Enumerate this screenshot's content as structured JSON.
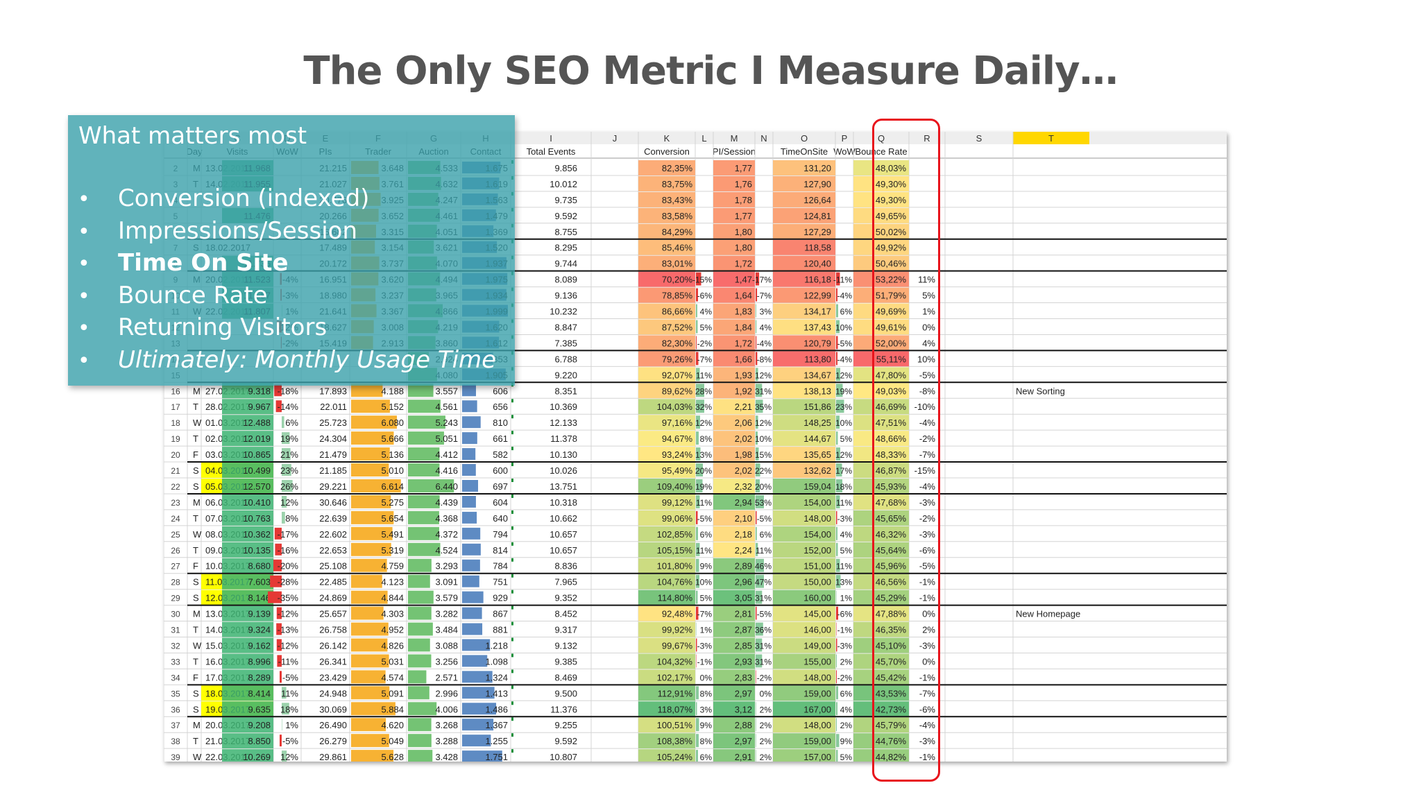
{
  "slide": {
    "title": "The Only SEO Metric I Measure Daily…"
  },
  "overlay": {
    "heading": "What matters most",
    "bullets": [
      {
        "text": "Conversion (indexed)",
        "style": "normal"
      },
      {
        "text": "Impressions/Session",
        "style": "normal"
      },
      {
        "text": "Time On Site",
        "style": "bold"
      },
      {
        "text": "Bounce Rate",
        "style": "normal"
      },
      {
        "text": "Returning Visitors",
        "style": "normal"
      },
      {
        "text": "Ultimately: Monthly Usage Time",
        "style": "italic"
      }
    ],
    "bullet_glyph": "•"
  },
  "sheet": {
    "column_letters": [
      "",
      "",
      "C",
      "D",
      "E",
      "F",
      "G",
      "H",
      "I",
      "J",
      "K",
      "L",
      "M",
      "N",
      "O",
      "P",
      "Q",
      "R",
      "S",
      "T"
    ],
    "headers": [
      "",
      "Day",
      "Visits",
      "WoW",
      "PIs",
      "Trader",
      "Auction",
      "Contact",
      "Total Events",
      "",
      "Conversion",
      "",
      "PI/Session",
      "",
      "TimeOnSite",
      "WoW",
      "Bounce Rate",
      "",
      "",
      ""
    ],
    "rows": [
      {
        "n": "16",
        "d": "M",
        "date": "27.02.2017",
        "visits": "9.318",
        "wow": "-18%",
        "pis": "17.893",
        "trader": "4.188",
        "auction": "3.557",
        "contact": "606",
        "total": "8.351",
        "conv": "89,62%",
        "cw": "28%",
        "pis_s": "1,92",
        "pw": "31%",
        "tos": "138,13",
        "tw": "19%",
        "br": "49,03%",
        "bw": "-8%",
        "note": ""
      },
      {
        "n": "17",
        "d": "T",
        "date": "28.02.2017",
        "visits": "9.967",
        "wow": "-14%",
        "pis": "22.011",
        "trader": "5.152",
        "auction": "4.561",
        "contact": "656",
        "total": "10.369",
        "conv": "104,03%",
        "cw": "32%",
        "pis_s": "2,21",
        "pw": "35%",
        "tos": "151,86",
        "tw": "23%",
        "br": "46,69%",
        "bw": "-10%",
        "note": ""
      },
      {
        "n": "18",
        "d": "W",
        "date": "01.03.2017",
        "visits": "12.488",
        "wow": "6%",
        "pis": "25.723",
        "trader": "6.080",
        "auction": "5.243",
        "contact": "810",
        "total": "12.133",
        "conv": "97,16%",
        "cw": "12%",
        "pis_s": "2,06",
        "pw": "12%",
        "tos": "148,25",
        "tw": "10%",
        "br": "47,51%",
        "bw": "-4%",
        "note": ""
      },
      {
        "n": "19",
        "d": "T",
        "date": "02.03.2017",
        "visits": "12.019",
        "wow": "19%",
        "pis": "24.304",
        "trader": "5.666",
        "auction": "5.051",
        "contact": "661",
        "total": "11.378",
        "conv": "94,67%",
        "cw": "8%",
        "pis_s": "2,02",
        "pw": "10%",
        "tos": "144,67",
        "tw": "5%",
        "br": "48,66%",
        "bw": "-2%",
        "note": ""
      },
      {
        "n": "20",
        "d": "F",
        "date": "03.03.2017",
        "visits": "10.865",
        "wow": "21%",
        "pis": "21.479",
        "trader": "5.136",
        "auction": "4.412",
        "contact": "582",
        "total": "10.130",
        "conv": "93,24%",
        "cw": "13%",
        "pis_s": "1,98",
        "pw": "15%",
        "tos": "135,65",
        "tw": "12%",
        "br": "48,33%",
        "bw": "-7%",
        "note": ""
      },
      {
        "n": "21",
        "d": "S",
        "date": "04.03.2017",
        "visits": "10.499",
        "wow": "23%",
        "pis": "21.185",
        "trader": "5.010",
        "auction": "4.416",
        "contact": "600",
        "total": "10.026",
        "conv": "95,49%",
        "cw": "20%",
        "pis_s": "2,02",
        "pw": "22%",
        "tos": "132,62",
        "tw": "17%",
        "br": "46,87%",
        "bw": "-15%",
        "note": ""
      },
      {
        "n": "22",
        "d": "S",
        "date": "05.03.2017",
        "visits": "12.570",
        "wow": "26%",
        "pis": "29.221",
        "trader": "6.614",
        "auction": "6.440",
        "contact": "697",
        "total": "13.751",
        "conv": "109,40%",
        "cw": "19%",
        "pis_s": "2,32",
        "pw": "20%",
        "tos": "159,04",
        "tw": "18%",
        "br": "45,93%",
        "bw": "-4%",
        "note": ""
      },
      {
        "n": "23",
        "d": "M",
        "date": "06.03.2017",
        "visits": "10.410",
        "wow": "12%",
        "pis": "30.646",
        "trader": "5.275",
        "auction": "4.439",
        "contact": "604",
        "total": "10.318",
        "conv": "99,12%",
        "cw": "11%",
        "pis_s": "2,94",
        "pw": "53%",
        "tos": "154,00",
        "tw": "11%",
        "br": "47,68%",
        "bw": "-3%",
        "note": ""
      },
      {
        "n": "24",
        "d": "T",
        "date": "07.03.2017",
        "visits": "10.763",
        "wow": "8%",
        "pis": "22.639",
        "trader": "5.654",
        "auction": "4.368",
        "contact": "640",
        "total": "10.662",
        "conv": "99,06%",
        "cw": "-5%",
        "pis_s": "2,10",
        "pw": "-5%",
        "tos": "148,00",
        "tw": "-3%",
        "br": "45,65%",
        "bw": "-2%",
        "note": ""
      },
      {
        "n": "25",
        "d": "W",
        "date": "08.03.2017",
        "visits": "10.362",
        "wow": "-17%",
        "pis": "22.602",
        "trader": "5.491",
        "auction": "4.372",
        "contact": "794",
        "total": "10.657",
        "conv": "102,85%",
        "cw": "6%",
        "pis_s": "2,18",
        "pw": "6%",
        "tos": "154,00",
        "tw": "4%",
        "br": "46,32%",
        "bw": "-3%",
        "note": ""
      },
      {
        "n": "26",
        "d": "T",
        "date": "09.03.2017",
        "visits": "10.135",
        "wow": "-16%",
        "pis": "22.653",
        "trader": "5.319",
        "auction": "4.524",
        "contact": "814",
        "total": "10.657",
        "conv": "105,15%",
        "cw": "11%",
        "pis_s": "2,24",
        "pw": "11%",
        "tos": "152,00",
        "tw": "5%",
        "br": "45,64%",
        "bw": "-6%",
        "note": ""
      },
      {
        "n": "27",
        "d": "F",
        "date": "10.03.2017",
        "visits": "8.680",
        "wow": "-20%",
        "pis": "25.108",
        "trader": "4.759",
        "auction": "3.293",
        "contact": "784",
        "total": "8.836",
        "conv": "101,80%",
        "cw": "9%",
        "pis_s": "2,89",
        "pw": "46%",
        "tos": "151,00",
        "tw": "11%",
        "br": "45,96%",
        "bw": "-5%",
        "note": ""
      },
      {
        "n": "28",
        "d": "S",
        "date": "11.03.2017",
        "visits": "7.603",
        "wow": "-28%",
        "pis": "22.485",
        "trader": "4.123",
        "auction": "3.091",
        "contact": "751",
        "total": "7.965",
        "conv": "104,76%",
        "cw": "10%",
        "pis_s": "2,96",
        "pw": "47%",
        "tos": "150,00",
        "tw": "13%",
        "br": "46,56%",
        "bw": "-1%",
        "note": ""
      },
      {
        "n": "29",
        "d": "S",
        "date": "12.03.2017",
        "visits": "8.146",
        "wow": "-35%",
        "pis": "24.869",
        "trader": "4.844",
        "auction": "3.579",
        "contact": "929",
        "total": "9.352",
        "conv": "114,80%",
        "cw": "5%",
        "pis_s": "3,05",
        "pw": "31%",
        "tos": "160,00",
        "tw": "1%",
        "br": "45,29%",
        "bw": "-1%",
        "note": ""
      },
      {
        "n": "30",
        "d": "M",
        "date": "13.03.2017",
        "visits": "9.139",
        "wow": "-12%",
        "pis": "25.657",
        "trader": "4.303",
        "auction": "3.282",
        "contact": "867",
        "total": "8.452",
        "conv": "92,48%",
        "cw": "-7%",
        "pis_s": "2,81",
        "pw": "-5%",
        "tos": "145,00",
        "tw": "-6%",
        "br": "47,88%",
        "bw": "0%",
        "note": "New Homepage"
      },
      {
        "n": "31",
        "d": "T",
        "date": "14.03.2017",
        "visits": "9.324",
        "wow": "-13%",
        "pis": "26.758",
        "trader": "4.952",
        "auction": "3.484",
        "contact": "881",
        "total": "9.317",
        "conv": "99,92%",
        "cw": "1%",
        "pis_s": "2,87",
        "pw": "36%",
        "tos": "146,00",
        "tw": "-1%",
        "br": "46,35%",
        "bw": "2%",
        "note": ""
      },
      {
        "n": "32",
        "d": "W",
        "date": "15.03.2017",
        "visits": "9.162",
        "wow": "-12%",
        "pis": "26.142",
        "trader": "4.826",
        "auction": "3.088",
        "contact": "1.218",
        "total": "9.132",
        "conv": "99,67%",
        "cw": "-3%",
        "pis_s": "2,85",
        "pw": "31%",
        "tos": "149,00",
        "tw": "-3%",
        "br": "45,10%",
        "bw": "-3%",
        "note": ""
      },
      {
        "n": "33",
        "d": "T",
        "date": "16.03.2017",
        "visits": "8.996",
        "wow": "-11%",
        "pis": "26.341",
        "trader": "5.031",
        "auction": "3.256",
        "contact": "1.098",
        "total": "9.385",
        "conv": "104,32%",
        "cw": "-1%",
        "pis_s": "2,93",
        "pw": "31%",
        "tos": "155,00",
        "tw": "2%",
        "br": "45,70%",
        "bw": "0%",
        "note": ""
      },
      {
        "n": "34",
        "d": "F",
        "date": "17.03.2017",
        "visits": "8.289",
        "wow": "-5%",
        "pis": "23.429",
        "trader": "4.574",
        "auction": "2.571",
        "contact": "1.324",
        "total": "8.469",
        "conv": "102,17%",
        "cw": "0%",
        "pis_s": "2,83",
        "pw": "-2%",
        "tos": "148,00",
        "tw": "-2%",
        "br": "45,42%",
        "bw": "-1%",
        "note": ""
      },
      {
        "n": "35",
        "d": "S",
        "date": "18.03.2017",
        "visits": "8.414",
        "wow": "11%",
        "pis": "24.948",
        "trader": "5.091",
        "auction": "2.996",
        "contact": "1.413",
        "total": "9.500",
        "conv": "112,91%",
        "cw": "8%",
        "pis_s": "2,97",
        "pw": "0%",
        "tos": "159,00",
        "tw": "6%",
        "br": "43,53%",
        "bw": "-7%",
        "note": ""
      },
      {
        "n": "36",
        "d": "S",
        "date": "19.03.2017",
        "visits": "9.635",
        "wow": "18%",
        "pis": "30.069",
        "trader": "5.884",
        "auction": "4.006",
        "contact": "1.486",
        "total": "11.376",
        "conv": "118,07%",
        "cw": "3%",
        "pis_s": "3,12",
        "pw": "2%",
        "tos": "167,00",
        "tw": "4%",
        "br": "42,73%",
        "bw": "-6%",
        "note": ""
      },
      {
        "n": "37",
        "d": "M",
        "date": "20.03.2017",
        "visits": "9.208",
        "wow": "1%",
        "pis": "26.490",
        "trader": "4.620",
        "auction": "3.268",
        "contact": "1.367",
        "total": "9.255",
        "conv": "100,51%",
        "cw": "9%",
        "pis_s": "2,88",
        "pw": "2%",
        "tos": "148,00",
        "tw": "2%",
        "br": "45,79%",
        "bw": "-4%",
        "note": ""
      },
      {
        "n": "38",
        "d": "T",
        "date": "21.03.2017",
        "visits": "8.850",
        "wow": "-5%",
        "pis": "26.279",
        "trader": "5.049",
        "auction": "3.288",
        "contact": "1.255",
        "total": "9.592",
        "conv": "108,38%",
        "cw": "8%",
        "pis_s": "2,97",
        "pw": "2%",
        "tos": "159,00",
        "tw": "9%",
        "br": "44,76%",
        "bw": "-3%",
        "note": ""
      },
      {
        "n": "39",
        "d": "W",
        "date": "22.03.2017",
        "visits": "10.269",
        "wow": "12%",
        "pis": "29.861",
        "trader": "5.628",
        "auction": "3.428",
        "contact": "1.751",
        "total": "10.807",
        "conv": "105,24%",
        "cw": "6%",
        "pis_s": "2,91",
        "pw": "2%",
        "tos": "157,00",
        "tw": "5%",
        "br": "44,82%",
        "bw": "-1%",
        "note": ""
      }
    ],
    "upper_rows": [
      {
        "contact": "1.675",
        "total": "9.856",
        "conv": "82,35%",
        "cw": "",
        "pis_s": "1,77",
        "pw": "",
        "tos": "131,20",
        "tw": "",
        "br": "48,03%",
        "bw": "",
        "note": ""
      },
      {
        "contact": "1.619",
        "total": "10.012",
        "conv": "83,75%",
        "cw": "",
        "pis_s": "1,76",
        "pw": "",
        "tos": "127,90",
        "tw": "",
        "br": "49,30%",
        "bw": "",
        "note": ""
      },
      {
        "contact": "1.563",
        "total": "9.735",
        "conv": "83,43%",
        "cw": "",
        "pis_s": "1,78",
        "pw": "",
        "tos": "126,64",
        "tw": "",
        "br": "49,30%",
        "bw": "",
        "note": ""
      },
      {
        "contact": "1.479",
        "total": "9.592",
        "conv": "83,58%",
        "cw": "",
        "pis_s": "1,77",
        "pw": "",
        "tos": "124,81",
        "tw": "",
        "br": "49,65%",
        "bw": "",
        "note": ""
      },
      {
        "contact": "1.369",
        "total": "8.755",
        "conv": "84,29%",
        "cw": "",
        "pis_s": "1,80",
        "pw": "",
        "tos": "127,29",
        "tw": "",
        "br": "50,02%",
        "bw": "",
        "note": ""
      },
      {
        "contact": "1.520",
        "total": "8.295",
        "conv": "85,46%",
        "cw": "",
        "pis_s": "1,80",
        "pw": "",
        "tos": "118,58",
        "tw": "",
        "br": "49,92%",
        "bw": "",
        "note": ""
      },
      {
        "contact": "1.937",
        "total": "9.744",
        "conv": "83,01%",
        "cw": "",
        "pis_s": "1,72",
        "pw": "",
        "tos": "120,40",
        "tw": "",
        "br": "50,46%",
        "bw": "",
        "note": ""
      },
      {
        "contact": "1.975",
        "total": "8.089",
        "conv": "70,20%",
        "cw": "-15%",
        "pis_s": "1,47",
        "pw": "-17%",
        "tos": "116,18",
        "tw": "-11%",
        "br": "53,22%",
        "bw": "11%",
        "note": ""
      },
      {
        "contact": "1.934",
        "total": "9.136",
        "conv": "78,85%",
        "cw": "-6%",
        "pis_s": "1,64",
        "pw": "-7%",
        "tos": "122,99",
        "tw": "-4%",
        "br": "51,79%",
        "bw": "5%",
        "note": ""
      },
      {
        "contact": "1.999",
        "total": "10.232",
        "conv": "86,66%",
        "cw": "4%",
        "pis_s": "1,83",
        "pw": "3%",
        "tos": "134,17",
        "tw": "6%",
        "br": "49,69%",
        "bw": "1%",
        "note": ""
      },
      {
        "contact": "1.620",
        "total": "8.847",
        "conv": "87,52%",
        "cw": "5%",
        "pis_s": "1,84",
        "pw": "4%",
        "tos": "137,43",
        "tw": "10%",
        "br": "49,61%",
        "bw": "0%",
        "note": ""
      },
      {
        "contact": "1.612",
        "total": "7.385",
        "conv": "82,30%",
        "cw": "-2%",
        "pis_s": "1,72",
        "pw": "-4%",
        "tos": "120,79",
        "tw": "-5%",
        "br": "52,00%",
        "bw": "4%",
        "note": ""
      },
      {
        "contact": "1.353",
        "total": "6.788",
        "conv": "79,26%",
        "cw": "-7%",
        "pis_s": "1,66",
        "pw": "-8%",
        "tos": "113,80",
        "tw": "-4%",
        "br": "55,11%",
        "bw": "10%",
        "note": ""
      },
      {
        "contact": "1.905",
        "total": "9.220",
        "conv": "92,07%",
        "cw": "11%",
        "pis_s": "1,93",
        "pw": "12%",
        "tos": "134,67",
        "tw": "12%",
        "br": "47,80%",
        "bw": "-5%",
        "note": ""
      }
    ],
    "upper_row_numbers": [
      "2",
      "3",
      "4",
      "5",
      "6",
      "7",
      "8",
      "9",
      "10",
      "11",
      "12",
      "13",
      "14",
      "15"
    ],
    "upper_day_fragments": [
      {
        "d": "M",
        "date": "13.02.2010"
      },
      {
        "d": "T",
        "date": "14.02.2011"
      },
      {
        "d": "",
        "date": ""
      },
      {
        "d": "",
        "date": ""
      },
      {
        "d": "",
        "date": ""
      },
      {
        "d": "S",
        "date": "18.02.2017"
      },
      {
        "d": "",
        "date": ""
      },
      {
        "d": "M",
        "date": "20.02.2017"
      },
      {
        "d": "",
        "date": ""
      },
      {
        "d": "W",
        "date": "22.02.2017"
      },
      {
        "d": "",
        "date": ""
      },
      {
        "d": "",
        "date": ""
      },
      {
        "d": "",
        "date": ""
      },
      {
        "d": "",
        "date": ""
      }
    ],
    "upper_left_cells": [
      {
        "visits": "11.968",
        "wow": "",
        "pis": "21.215",
        "trader": "3.648",
        "auction": "4.533"
      },
      {
        "visits": "11.955",
        "wow": "",
        "pis": "21.027",
        "trader": "3.761",
        "auction": "4.632"
      },
      {
        "visits": "",
        "wow": "",
        "pis": "20.776",
        "trader": "3.925",
        "auction": "4.247"
      },
      {
        "visits": "11.476",
        "wow": "",
        "pis": "20.266",
        "trader": "3.652",
        "auction": "4.461"
      },
      {
        "visits": "",
        "wow": "",
        "pis": "16.682",
        "trader": "3.315",
        "auction": "4.051"
      },
      {
        "visits": "",
        "wow": "",
        "pis": "17.489",
        "trader": "3.154",
        "auction": "3.621"
      },
      {
        "visits": "11.736",
        "wow": "",
        "pis": "20.172",
        "trader": "3.737",
        "auction": "4.070"
      },
      {
        "visits": "11.523",
        "wow": "-4%",
        "pis": "16.951",
        "trader": "3.620",
        "auction": "4.494"
      },
      {
        "visits": "11.587",
        "wow": "-3%",
        "pis": "18.980",
        "trader": "3.237",
        "auction": "3.965"
      },
      {
        "visits": "11.807",
        "wow": "1%",
        "pis": "21.641",
        "trader": "3.367",
        "auction": "4.866"
      },
      {
        "visits": "",
        "wow": "-12%",
        "pis": "18.627",
        "trader": "3.008",
        "auction": "4.219"
      },
      {
        "visits": "",
        "wow": "-2%",
        "pis": "15.419",
        "trader": "2.913",
        "auction": "3.860"
      },
      {
        "visits": "",
        "wow": "",
        "pis": "",
        "trader": "",
        "auction": "2.924"
      },
      {
        "visits": "",
        "wow": "",
        "pis": "",
        "trader": "",
        "auction": "4.080"
      }
    ],
    "weekly_separators_after_row": [
      "6",
      "8",
      "13",
      "15",
      "20",
      "22",
      "27",
      "29",
      "34",
      "36"
    ],
    "weekend_rows": [
      "21",
      "22",
      "28",
      "29",
      "35",
      "36"
    ],
    "note_new_sorting": "New Sorting",
    "colors": {
      "grid": "#d4d4d4",
      "header_bg": "#eeeeee",
      "selected_col": "#ffd700",
      "weekend": "#ffff00",
      "visits_green": "#3cb371",
      "trader_orange": "#f7b233",
      "auction_green": "#5cb85c",
      "contact_blue": "#4d7ebd",
      "red_bar": "#e53935",
      "green_bar": "#3aa55a"
    }
  }
}
